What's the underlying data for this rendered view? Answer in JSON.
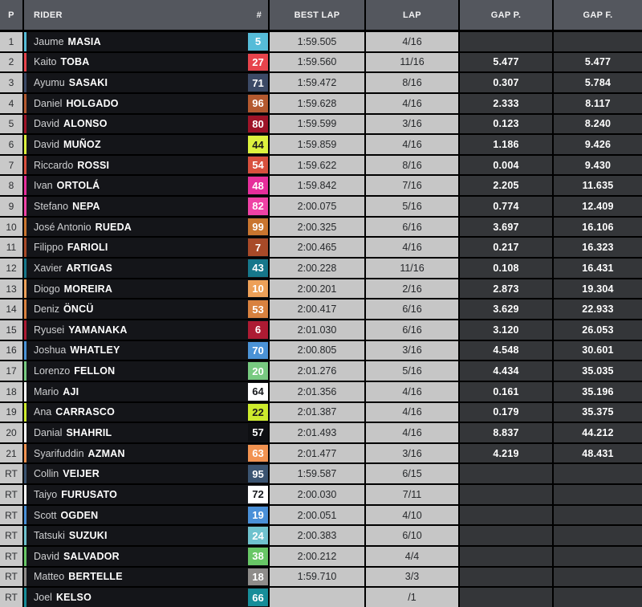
{
  "colors": {
    "page_background": "#000000",
    "header_bg": "#54575e",
    "header_text": "#f2f2f3",
    "position_cell_bg": "#c9c9c9",
    "rider_cell_bg": "#141519",
    "time_cell_bg": "#c6c6c6",
    "gap_cell_bg": "#343639",
    "border": "#000000"
  },
  "header": {
    "position": "P",
    "rider": "RIDER",
    "number": "#",
    "best_lap": "BEST LAP",
    "lap": "LAP",
    "gap_prev": "GAP P.",
    "gap_first": "GAP F."
  },
  "rows": [
    {
      "pos": "1",
      "first_name": "Jaume",
      "last_name": "MASIA",
      "number": "5",
      "number_bg": "#56bcd8",
      "number_color": "#ffffff",
      "accent": "#56bcd8",
      "best_lap": "1:59.505",
      "lap": "4/16",
      "gap_prev": "",
      "gap_first": ""
    },
    {
      "pos": "2",
      "first_name": "Kaito",
      "last_name": "TOBA",
      "number": "27",
      "number_bg": "#e6444c",
      "number_color": "#ffffff",
      "accent": "#e6444c",
      "best_lap": "1:59.560",
      "lap": "11/16",
      "gap_prev": "5.477",
      "gap_first": "5.477"
    },
    {
      "pos": "3",
      "first_name": "Ayumu",
      "last_name": "SASAKI",
      "number": "71",
      "number_bg": "#3c4a66",
      "number_color": "#ffffff",
      "accent": "#3c4a66",
      "best_lap": "1:59.472",
      "lap": "8/16",
      "gap_prev": "0.307",
      "gap_first": "5.784"
    },
    {
      "pos": "4",
      "first_name": "Daniel",
      "last_name": "HOLGADO",
      "number": "96",
      "number_bg": "#b4592f",
      "number_color": "#ffffff",
      "accent": "#b4592f",
      "best_lap": "1:59.628",
      "lap": "4/16",
      "gap_prev": "2.333",
      "gap_first": "8.117"
    },
    {
      "pos": "5",
      "first_name": "David",
      "last_name": "ALONSO",
      "number": "80",
      "number_bg": "#9e1428",
      "number_color": "#ffffff",
      "accent": "#9e1428",
      "best_lap": "1:59.599",
      "lap": "3/16",
      "gap_prev": "0.123",
      "gap_first": "8.240"
    },
    {
      "pos": "6",
      "first_name": "David",
      "last_name": "MUÑOZ",
      "number": "44",
      "number_bg": "#ddf23e",
      "number_color": "#1a1a1a",
      "accent": "#ddf23e",
      "best_lap": "1:59.859",
      "lap": "4/16",
      "gap_prev": "1.186",
      "gap_first": "9.426"
    },
    {
      "pos": "7",
      "first_name": "Riccardo",
      "last_name": "ROSSI",
      "number": "54",
      "number_bg": "#d8503e",
      "number_color": "#ffffff",
      "accent": "#d8503e",
      "best_lap": "1:59.622",
      "lap": "8/16",
      "gap_prev": "0.004",
      "gap_first": "9.430"
    },
    {
      "pos": "8",
      "first_name": "Ivan",
      "last_name": "ORTOLÁ",
      "number": "48",
      "number_bg": "#e62e9b",
      "number_color": "#ffffff",
      "accent": "#e62e9b",
      "best_lap": "1:59.842",
      "lap": "7/16",
      "gap_prev": "2.205",
      "gap_first": "11.635"
    },
    {
      "pos": "9",
      "first_name": "Stefano",
      "last_name": "NEPA",
      "number": "82",
      "number_bg": "#ef42a5",
      "number_color": "#ffffff",
      "accent": "#ef42a5",
      "best_lap": "2:00.075",
      "lap": "5/16",
      "gap_prev": "0.774",
      "gap_first": "12.409"
    },
    {
      "pos": "10",
      "first_name": "José Antonio",
      "last_name": "RUEDA",
      "number": "99",
      "number_bg": "#c9752f",
      "number_color": "#ffffff",
      "accent": "#c9752f",
      "best_lap": "2:00.325",
      "lap": "6/16",
      "gap_prev": "3.697",
      "gap_first": "16.106"
    },
    {
      "pos": "11",
      "first_name": "Filippo",
      "last_name": "FARIOLI",
      "number": "7",
      "number_bg": "#a84a28",
      "number_color": "#ffffff",
      "accent": "#a84a28",
      "best_lap": "2:00.465",
      "lap": "4/16",
      "gap_prev": "0.217",
      "gap_first": "16.323"
    },
    {
      "pos": "12",
      "first_name": "Xavier",
      "last_name": "ARTIGAS",
      "number": "43",
      "number_bg": "#16778b",
      "number_color": "#ffffff",
      "accent": "#16778b",
      "best_lap": "2:00.228",
      "lap": "11/16",
      "gap_prev": "0.108",
      "gap_first": "16.431"
    },
    {
      "pos": "13",
      "first_name": "Diogo",
      "last_name": "MOREIRA",
      "number": "10",
      "number_bg": "#eda058",
      "number_color": "#ffffff",
      "accent": "#eda058",
      "best_lap": "2:00.201",
      "lap": "2/16",
      "gap_prev": "2.873",
      "gap_first": "19.304"
    },
    {
      "pos": "14",
      "first_name": "Deniz",
      "last_name": "ÖNCÜ",
      "number": "53",
      "number_bg": "#d8813f",
      "number_color": "#ffffff",
      "accent": "#d8813f",
      "best_lap": "2:00.417",
      "lap": "6/16",
      "gap_prev": "3.629",
      "gap_first": "22.933"
    },
    {
      "pos": "15",
      "first_name": "Ryusei",
      "last_name": "YAMANAKA",
      "number": "6",
      "number_bg": "#ad1b33",
      "number_color": "#ffffff",
      "accent": "#ad1b33",
      "best_lap": "2:01.030",
      "lap": "6/16",
      "gap_prev": "3.120",
      "gap_first": "26.053"
    },
    {
      "pos": "16",
      "first_name": "Joshua",
      "last_name": "WHATLEY",
      "number": "70",
      "number_bg": "#4b93d6",
      "number_color": "#ffffff",
      "accent": "#4b93d6",
      "best_lap": "2:00.805",
      "lap": "3/16",
      "gap_prev": "4.548",
      "gap_first": "30.601"
    },
    {
      "pos": "17",
      "first_name": "Lorenzo",
      "last_name": "FELLON",
      "number": "20",
      "number_bg": "#78ca81",
      "number_color": "#ffffff",
      "accent": "#78ca81",
      "best_lap": "2:01.276",
      "lap": "5/16",
      "gap_prev": "4.434",
      "gap_first": "35.035"
    },
    {
      "pos": "18",
      "first_name": "Mario",
      "last_name": "AJI",
      "number": "64",
      "number_bg": "#ffffff",
      "number_color": "#16181c",
      "accent": "#ffffff",
      "best_lap": "2:01.356",
      "lap": "4/16",
      "gap_prev": "0.161",
      "gap_first": "35.196"
    },
    {
      "pos": "19",
      "first_name": "Ana",
      "last_name": "CARRASCO",
      "number": "22",
      "number_bg": "#cdeb2d",
      "number_color": "#1a1a1a",
      "accent": "#cdeb2d",
      "best_lap": "2:01.387",
      "lap": "4/16",
      "gap_prev": "0.179",
      "gap_first": "35.375"
    },
    {
      "pos": "20",
      "first_name": "Danial",
      "last_name": "SHAHRIL",
      "number": "57",
      "number_bg": "#0e0f12",
      "number_color": "#ffffff",
      "accent": "#ffffff",
      "best_lap": "2:01.493",
      "lap": "4/16",
      "gap_prev": "8.837",
      "gap_first": "44.212"
    },
    {
      "pos": "21",
      "first_name": "Syarifuddin",
      "last_name": "AZMAN",
      "number": "63",
      "number_bg": "#f29351",
      "number_color": "#ffffff",
      "accent": "#f29351",
      "best_lap": "2:01.477",
      "lap": "3/16",
      "gap_prev": "4.219",
      "gap_first": "48.431"
    },
    {
      "pos": "RT",
      "first_name": "Collin",
      "last_name": "VEIJER",
      "number": "95",
      "number_bg": "#3b5471",
      "number_color": "#ffffff",
      "accent": "#3b5471",
      "best_lap": "1:59.587",
      "lap": "6/15",
      "gap_prev": "",
      "gap_first": ""
    },
    {
      "pos": "RT",
      "first_name": "Taiyo",
      "last_name": "FURUSATO",
      "number": "72",
      "number_bg": "#ffffff",
      "number_color": "#16181c",
      "accent": "#ffffff",
      "best_lap": "2:00.030",
      "lap": "7/11",
      "gap_prev": "",
      "gap_first": ""
    },
    {
      "pos": "RT",
      "first_name": "Scott",
      "last_name": "OGDEN",
      "number": "19",
      "number_bg": "#4a90d8",
      "number_color": "#ffffff",
      "accent": "#4a90d8",
      "best_lap": "2:00.051",
      "lap": "4/10",
      "gap_prev": "",
      "gap_first": ""
    },
    {
      "pos": "RT",
      "first_name": "Tatsuki",
      "last_name": "SUZUKI",
      "number": "24",
      "number_bg": "#6fc2ce",
      "number_color": "#ffffff",
      "accent": "#6fc2ce",
      "best_lap": "2:00.383",
      "lap": "6/10",
      "gap_prev": "",
      "gap_first": ""
    },
    {
      "pos": "RT",
      "first_name": "David",
      "last_name": "SALVADOR",
      "number": "38",
      "number_bg": "#68c766",
      "number_color": "#ffffff",
      "accent": "#68c766",
      "best_lap": "2:00.212",
      "lap": "4/4",
      "gap_prev": "",
      "gap_first": ""
    },
    {
      "pos": "RT",
      "first_name": "Matteo",
      "last_name": "BERTELLE",
      "number": "18",
      "number_bg": "#8e8c8a",
      "number_color": "#ffffff",
      "accent": "#8e8c8a",
      "best_lap": "1:59.710",
      "lap": "3/3",
      "gap_prev": "",
      "gap_first": ""
    },
    {
      "pos": "RT",
      "first_name": "Joel",
      "last_name": "KELSO",
      "number": "66",
      "number_bg": "#178d99",
      "number_color": "#ffffff",
      "accent": "#178d99",
      "best_lap": "",
      "lap": "/1",
      "gap_prev": "",
      "gap_first": ""
    }
  ]
}
